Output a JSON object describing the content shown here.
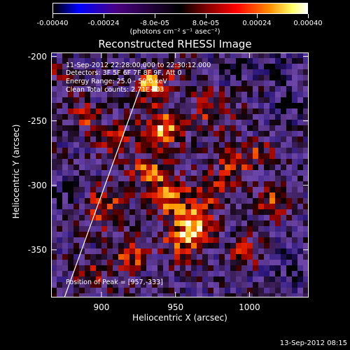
{
  "colorbar": {
    "ticks": [
      "-0.00040",
      "-0.00024",
      "-8.0e-05",
      "8.0e-05",
      "0.00024",
      "0.00040"
    ],
    "units": "(photons cm⁻² s⁻¹ asec⁻²)"
  },
  "chart_data": {
    "type": "heatmap",
    "title": "Reconstructed RHESSI Image",
    "xlabel": "Heliocentric X (arcsec)",
    "ylabel": "Heliocentric Y (arcsec)",
    "xlim": [
      866,
      1040
    ],
    "ylim": [
      -387,
      -197
    ],
    "xticks": [
      "900",
      "950",
      "1000"
    ],
    "yticks": [
      "-200",
      "-250",
      "-300",
      "-350"
    ],
    "value_range": [
      -0.0004,
      0.0004
    ],
    "peak": [
      957,
      -333
    ],
    "limb_line": [
      [
        875,
        -387
      ],
      [
        926,
        -225
      ]
    ]
  },
  "annotations": [
    "11-Sep-2012 22:28:00.000 to 22:30:12.000",
    "Detectors: 3F 5F 6F 7F 8F 9F, Att 0",
    "Energy Range: 25.0 - 50.0 keV",
    "Clean     Total counts: 2.71E+03"
  ],
  "peak_text": "Position of Peak = [957,-333]",
  "footer_date": "13-Sep-2012 08:15",
  "colors": {
    "background": "#000000",
    "text": "#ffffff"
  }
}
